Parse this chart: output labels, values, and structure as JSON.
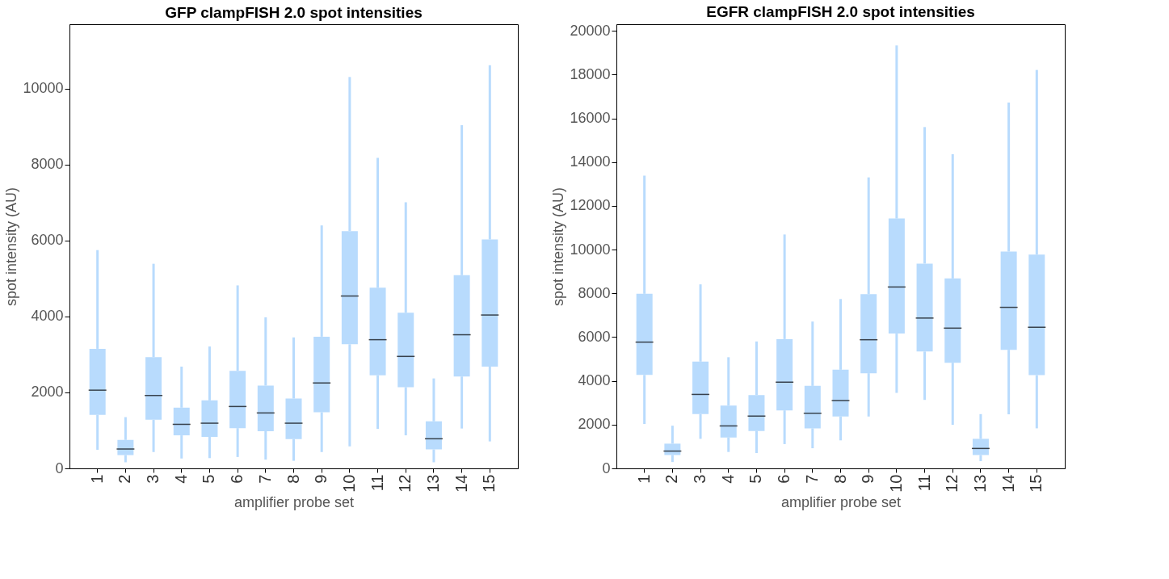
{
  "chart_data": [
    {
      "type": "box",
      "title": "GFP clampFISH 2.0 spot intensities",
      "xlabel": "amplifier probe set",
      "ylabel": "spot intensity (AU)",
      "categories": [
        "1",
        "2",
        "3",
        "4",
        "5",
        "6",
        "7",
        "8",
        "9",
        "10",
        "11",
        "12",
        "13",
        "14",
        "15"
      ],
      "ylim": [
        0,
        11700
      ],
      "yticks": [
        0,
        2000,
        4000,
        6000,
        8000,
        10000
      ],
      "grid": false,
      "series": [
        {
          "color": "#b8dbfd",
          "boxes": [
            {
              "low": 490,
              "q1": 1410,
              "median": 2060,
              "q3": 3150,
              "high": 5750
            },
            {
              "low": 160,
              "q1": 350,
              "median": 510,
              "q3": 750,
              "high": 1350
            },
            {
              "low": 430,
              "q1": 1280,
              "median": 1920,
              "q3": 2930,
              "high": 5390
            },
            {
              "low": 260,
              "q1": 870,
              "median": 1160,
              "q3": 1600,
              "high": 2680
            },
            {
              "low": 270,
              "q1": 830,
              "median": 1190,
              "q3": 1790,
              "high": 3210
            },
            {
              "low": 300,
              "q1": 1060,
              "median": 1630,
              "q3": 2570,
              "high": 4820
            },
            {
              "low": 230,
              "q1": 980,
              "median": 1460,
              "q3": 2180,
              "high": 3980
            },
            {
              "low": 200,
              "q1": 770,
              "median": 1190,
              "q3": 1840,
              "high": 3450
            },
            {
              "low": 430,
              "q1": 1480,
              "median": 2250,
              "q3": 3470,
              "high": 6400
            },
            {
              "low": 580,
              "q1": 3270,
              "median": 4540,
              "q3": 6250,
              "high": 10310
            },
            {
              "low": 1040,
              "q1": 2450,
              "median": 3390,
              "q3": 4760,
              "high": 8180
            },
            {
              "low": 870,
              "q1": 2140,
              "median": 2950,
              "q3": 4100,
              "high": 7010
            },
            {
              "low": 160,
              "q1": 500,
              "median": 780,
              "q3": 1240,
              "high": 2370
            },
            {
              "low": 1050,
              "q1": 2420,
              "median": 3520,
              "q3": 5090,
              "high": 9040
            },
            {
              "low": 710,
              "q1": 2680,
              "median": 4040,
              "q3": 6030,
              "high": 10620
            }
          ]
        }
      ]
    },
    {
      "type": "box",
      "title": "EGFR clampFISH 2.0 spot intensities",
      "xlabel": "amplifier probe set",
      "ylabel": "spot intensity (AU)",
      "categories": [
        "1",
        "2",
        "3",
        "4",
        "5",
        "6",
        "7",
        "8",
        "9",
        "10",
        "11",
        "12",
        "13",
        "14",
        "15"
      ],
      "ylim": [
        0,
        20300
      ],
      "yticks": [
        0,
        2000,
        4000,
        6000,
        8000,
        10000,
        12000,
        14000,
        16000,
        18000,
        20000
      ],
      "grid": false,
      "series": [
        {
          "color": "#b8dbfd",
          "boxes": [
            {
              "low": 2030,
              "q1": 4270,
              "median": 5770,
              "q3": 7980,
              "high": 13380
            },
            {
              "low": 290,
              "q1": 610,
              "median": 790,
              "q3": 1130,
              "high": 1950
            },
            {
              "low": 1350,
              "q1": 2480,
              "median": 3380,
              "q3": 4880,
              "high": 8410
            },
            {
              "low": 750,
              "q1": 1410,
              "median": 1940,
              "q3": 2870,
              "high": 5080
            },
            {
              "low": 700,
              "q1": 1710,
              "median": 2390,
              "q3": 3350,
              "high": 5800
            },
            {
              "low": 1110,
              "q1": 2650,
              "median": 3940,
              "q3": 5910,
              "high": 10690
            },
            {
              "low": 920,
              "q1": 1830,
              "median": 2520,
              "q3": 3770,
              "high": 6710
            },
            {
              "low": 1280,
              "q1": 2370,
              "median": 3100,
              "q3": 4510,
              "high": 7740
            },
            {
              "low": 2370,
              "q1": 4350,
              "median": 5880,
              "q3": 7960,
              "high": 13300
            },
            {
              "low": 3450,
              "q1": 6160,
              "median": 8290,
              "q3": 11420,
              "high": 19330
            },
            {
              "low": 3130,
              "q1": 5340,
              "median": 6870,
              "q3": 9360,
              "high": 15600
            },
            {
              "low": 1990,
              "q1": 4830,
              "median": 6410,
              "q3": 8680,
              "high": 14360
            },
            {
              "low": 330,
              "q1": 610,
              "median": 910,
              "q3": 1350,
              "high": 2480
            },
            {
              "low": 2470,
              "q1": 5420,
              "median": 7360,
              "q3": 9910,
              "high": 16720
            },
            {
              "low": 1830,
              "q1": 4260,
              "median": 6450,
              "q3": 9770,
              "high": 18210
            }
          ]
        }
      ]
    }
  ]
}
